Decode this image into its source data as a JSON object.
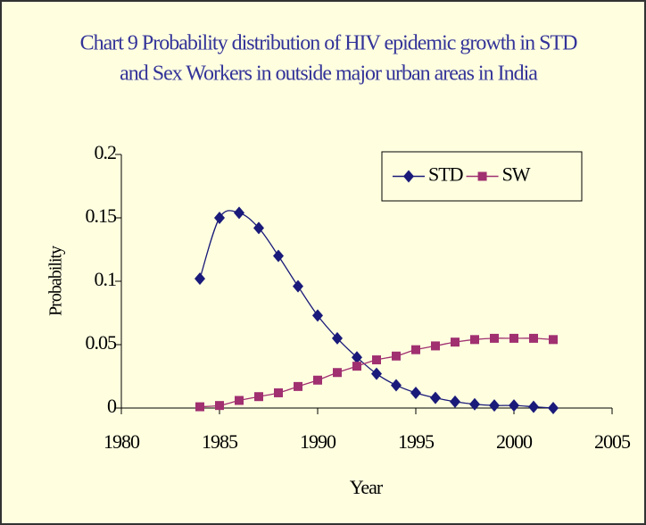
{
  "chart_data": {
    "type": "line",
    "title": [
      "Chart 9 Probability distribution of HIV epidemic growth in STD",
      "and Sex Workers in outside major urban areas in India"
    ],
    "x_label": "Year",
    "y_label": "Probability",
    "x": [
      1984,
      1985,
      1986,
      1987,
      1988,
      1989,
      1990,
      1991,
      1992,
      1993,
      1994,
      1995,
      1996,
      1997,
      1998,
      1999,
      2000,
      2001,
      2002
    ],
    "series": [
      {
        "name": "STD",
        "color": "#1a1a7a",
        "marker": "diamond",
        "values": [
          0.102,
          0.15,
          0.154,
          0.142,
          0.12,
          0.096,
          0.073,
          0.055,
          0.04,
          0.027,
          0.018,
          0.012,
          0.008,
          0.005,
          0.003,
          0.002,
          0.002,
          0.001,
          0.0
        ]
      },
      {
        "name": "SW",
        "color": "#a03070",
        "marker": "square",
        "values": [
          0.001,
          0.002,
          0.006,
          0.009,
          0.012,
          0.017,
          0.022,
          0.028,
          0.033,
          0.038,
          0.041,
          0.046,
          0.049,
          0.052,
          0.054,
          0.055,
          0.055,
          0.055,
          0.054
        ]
      }
    ],
    "xlim": [
      1980,
      2005
    ],
    "xticks": [
      1980,
      1985,
      1990,
      1995,
      2000,
      2005
    ],
    "ylim": [
      0,
      0.2
    ],
    "yticks": [
      0,
      0.05,
      0.1,
      0.15,
      0.2
    ],
    "legend": "upper right"
  }
}
